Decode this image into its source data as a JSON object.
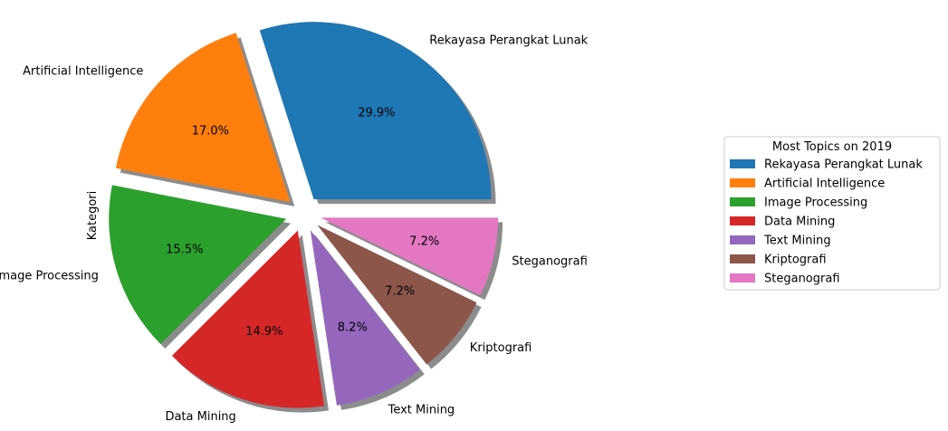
{
  "chart_data": {
    "type": "pie",
    "ylabel": "Kategori",
    "categories": [
      "Rekayasa Perangkat Lunak",
      "Artificial Intelligence",
      "Image Processing",
      "Data Mining",
      "Text Mining",
      "Kriptografi",
      "Steganografi"
    ],
    "values": [
      29.9,
      17.0,
      15.5,
      14.9,
      8.2,
      7.2,
      7.2
    ],
    "percent_labels": [
      "29.9%",
      "17.0%",
      "15.5%",
      "14.9%",
      "8.2%",
      "7.2%",
      "7.2%"
    ],
    "colors": [
      "#1f77b4",
      "#ff7f0e",
      "#2ca02c",
      "#d62728",
      "#9467bd",
      "#8c564b",
      "#e377c2"
    ],
    "exploded": true,
    "shadow": true,
    "legend": {
      "title": "Most Topics on 2019",
      "placement": "right",
      "entries": [
        "Rekayasa Perangkat Lunak",
        "Artificial Intelligence",
        "Image Processing",
        "Data Mining",
        "Text Mining",
        "Kriptografi",
        "Steganografi"
      ]
    }
  }
}
